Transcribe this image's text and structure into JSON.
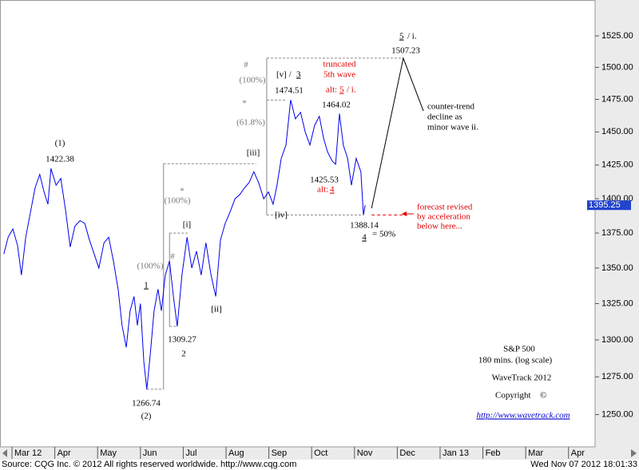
{
  "chart_data": {
    "type": "line",
    "log_scale": true,
    "xlim": [
      -0.28,
      13.62
    ],
    "ylim": [
      1229,
      1554
    ],
    "xticks": [
      {
        "value": 0,
        "label": "Mar 12"
      },
      {
        "value": 1,
        "label": "Apr"
      },
      {
        "value": 2,
        "label": "May"
      },
      {
        "value": 3,
        "label": "Jun"
      },
      {
        "value": 4,
        "label": "Jul"
      },
      {
        "value": 5,
        "label": "Aug"
      },
      {
        "value": 6,
        "label": "Sep"
      },
      {
        "value": 7,
        "label": "Oct"
      },
      {
        "value": 8,
        "label": "Nov"
      },
      {
        "value": 9,
        "label": "Dec"
      },
      {
        "value": 10,
        "label": "Jan 13"
      },
      {
        "value": 11,
        "label": "Feb"
      },
      {
        "value": 12,
        "label": "Mar"
      },
      {
        "value": 13,
        "label": "Apr"
      }
    ],
    "yticks": [
      {
        "value": 1250,
        "label": "1250.00"
      },
      {
        "value": 1275,
        "label": "1275.00"
      },
      {
        "value": 1300,
        "label": "1300.00"
      },
      {
        "value": 1325,
        "label": "1325.00"
      },
      {
        "value": 1350,
        "label": "1350.00"
      },
      {
        "value": 1375,
        "label": "1375.00"
      },
      {
        "value": 1400,
        "label": "1400.00"
      },
      {
        "value": 1425,
        "label": "1425.00"
      },
      {
        "value": 1450,
        "label": "1450.00"
      },
      {
        "value": 1475,
        "label": "1475.00"
      },
      {
        "value": 1500,
        "label": "1500.00"
      },
      {
        "value": 1525,
        "label": "1525.00"
      }
    ],
    "last_price": 1395.25,
    "series": [
      {
        "color": "#0000ee",
        "style": "solid",
        "x": [
          -0.19,
          -0.09,
          0.02,
          0.13,
          0.22,
          0.32,
          0.43,
          0.54,
          0.65,
          0.75,
          0.84,
          0.91,
          1.03,
          1.14,
          1.25,
          1.36,
          1.47,
          1.59,
          1.7,
          1.81,
          1.92,
          2.03,
          2.15,
          2.26,
          2.37,
          2.48,
          2.57,
          2.67,
          2.76,
          2.85,
          2.93,
          3.0,
          3.08,
          3.15,
          3.23,
          3.32,
          3.41,
          3.49,
          3.58,
          3.68,
          3.77,
          3.86,
          3.97,
          4.09,
          4.2,
          4.31,
          4.42,
          4.53,
          4.65,
          4.76,
          4.87,
          4.98,
          5.09,
          5.21,
          5.32,
          5.43,
          5.54,
          5.65,
          5.76,
          5.88,
          5.99,
          6.1,
          6.19,
          6.29,
          6.4,
          6.51,
          6.62,
          6.74,
          6.85,
          6.96,
          7.07,
          7.18,
          7.28,
          7.37,
          7.48,
          7.56,
          7.65,
          7.74,
          7.84,
          7.93,
          8.04,
          8.15,
          8.21,
          8.25
        ],
        "values": [
          1360,
          1372,
          1378,
          1366,
          1345,
          1372,
          1390,
          1408,
          1418,
          1405,
          1396,
          1422.38,
          1410,
          1415,
          1392,
          1365,
          1380,
          1384,
          1382,
          1370,
          1360,
          1350,
          1368,
          1372,
          1355,
          1335,
          1310,
          1295,
          1320,
          1330,
          1310,
          1325,
          1285,
          1266.74,
          1290,
          1320,
          1335,
          1320,
          1345,
          1355,
          1330,
          1309.27,
          1345,
          1372,
          1350,
          1362,
          1345,
          1368,
          1345,
          1330,
          1370,
          1382,
          1390,
          1400,
          1403,
          1408,
          1412,
          1420,
          1412,
          1400,
          1405,
          1396,
          1410,
          1430,
          1440,
          1474.51,
          1460,
          1465,
          1450,
          1440,
          1455,
          1462,
          1445,
          1435,
          1428,
          1425.53,
          1464.02,
          1440,
          1430,
          1410,
          1430,
          1420,
          1388.14,
          1395.25
        ]
      },
      {
        "color": "#000000",
        "style": "solid",
        "x": [
          8.4,
          9.14,
          9.61
        ],
        "values": [
          1393,
          1507.23,
          1466
        ]
      },
      {
        "color": "#ee0000",
        "style": "dashed",
        "x": [
          8.4,
          9.23
        ],
        "values": [
          1388.14,
          1388.14
        ]
      }
    ],
    "guides": [
      {
        "x": [
          3.54,
          3.54
        ],
        "values": [
          1266.74,
          1426
        ],
        "style": "solid"
      },
      {
        "x": [
          3.54,
          5.7
        ],
        "values": [
          1426,
          1426
        ],
        "style": "dashed"
      },
      {
        "x": [
          3.15,
          3.54
        ],
        "values": [
          1266.74,
          1266.74
        ],
        "style": "dashed"
      },
      {
        "x": [
          3.68,
          3.68
        ],
        "values": [
          1309.27,
          1375
        ],
        "style": "solid"
      },
      {
        "x": [
          3.68,
          4.1
        ],
        "values": [
          1375,
          1375
        ],
        "style": "dashed"
      },
      {
        "x": [
          3.68,
          3.86
        ],
        "values": [
          1309.27,
          1309.27
        ],
        "style": "dashed"
      },
      {
        "x": [
          5.95,
          5.95
        ],
        "values": [
          1388.14,
          1507.23
        ],
        "style": "solid"
      },
      {
        "x": [
          5.95,
          9.14
        ],
        "values": [
          1507.23,
          1507.23
        ],
        "style": "dashed"
      },
      {
        "x": [
          5.95,
          6.4
        ],
        "values": [
          1474.51,
          1474.51
        ],
        "style": "dashed"
      },
      {
        "x": [
          5.95,
          8.2
        ],
        "values": [
          1388.14,
          1388.14
        ],
        "style": "dashed"
      }
    ],
    "annotations": [
      "(1)",
      "1422.38",
      "1",
      "1309.27",
      "2",
      "1266.74",
      "(2)",
      "[i]",
      "[ii]",
      "[iii]",
      "[iv]",
      "#",
      "(100%)",
      "*",
      "(100%)",
      "#",
      "(100%)",
      "*",
      "(61.8%)",
      "[v] /",
      "3",
      "1474.51",
      "truncated",
      "5th wave",
      "alt:",
      "5",
      "/ i.",
      "1464.02",
      "1425.53",
      "alt:",
      "4",
      "1388.14",
      "4",
      "= 50%",
      "5",
      "/ i.",
      "1507.23",
      "counter-trend",
      "decline as",
      "minor wave ii.",
      "forecast revised",
      "by acceleration",
      "below here...",
      "S&P 500",
      "180 mins. (log scale)",
      "WaveTrack 2012",
      "Copyright",
      "©",
      "http://www.wavetrack.com"
    ],
    "source": "Source: CQG Inc. © 2012 All rights reserved worldwide. http://www.cqg.com",
    "timestamp": "Wed Nov 07 2012 18:01:33"
  }
}
